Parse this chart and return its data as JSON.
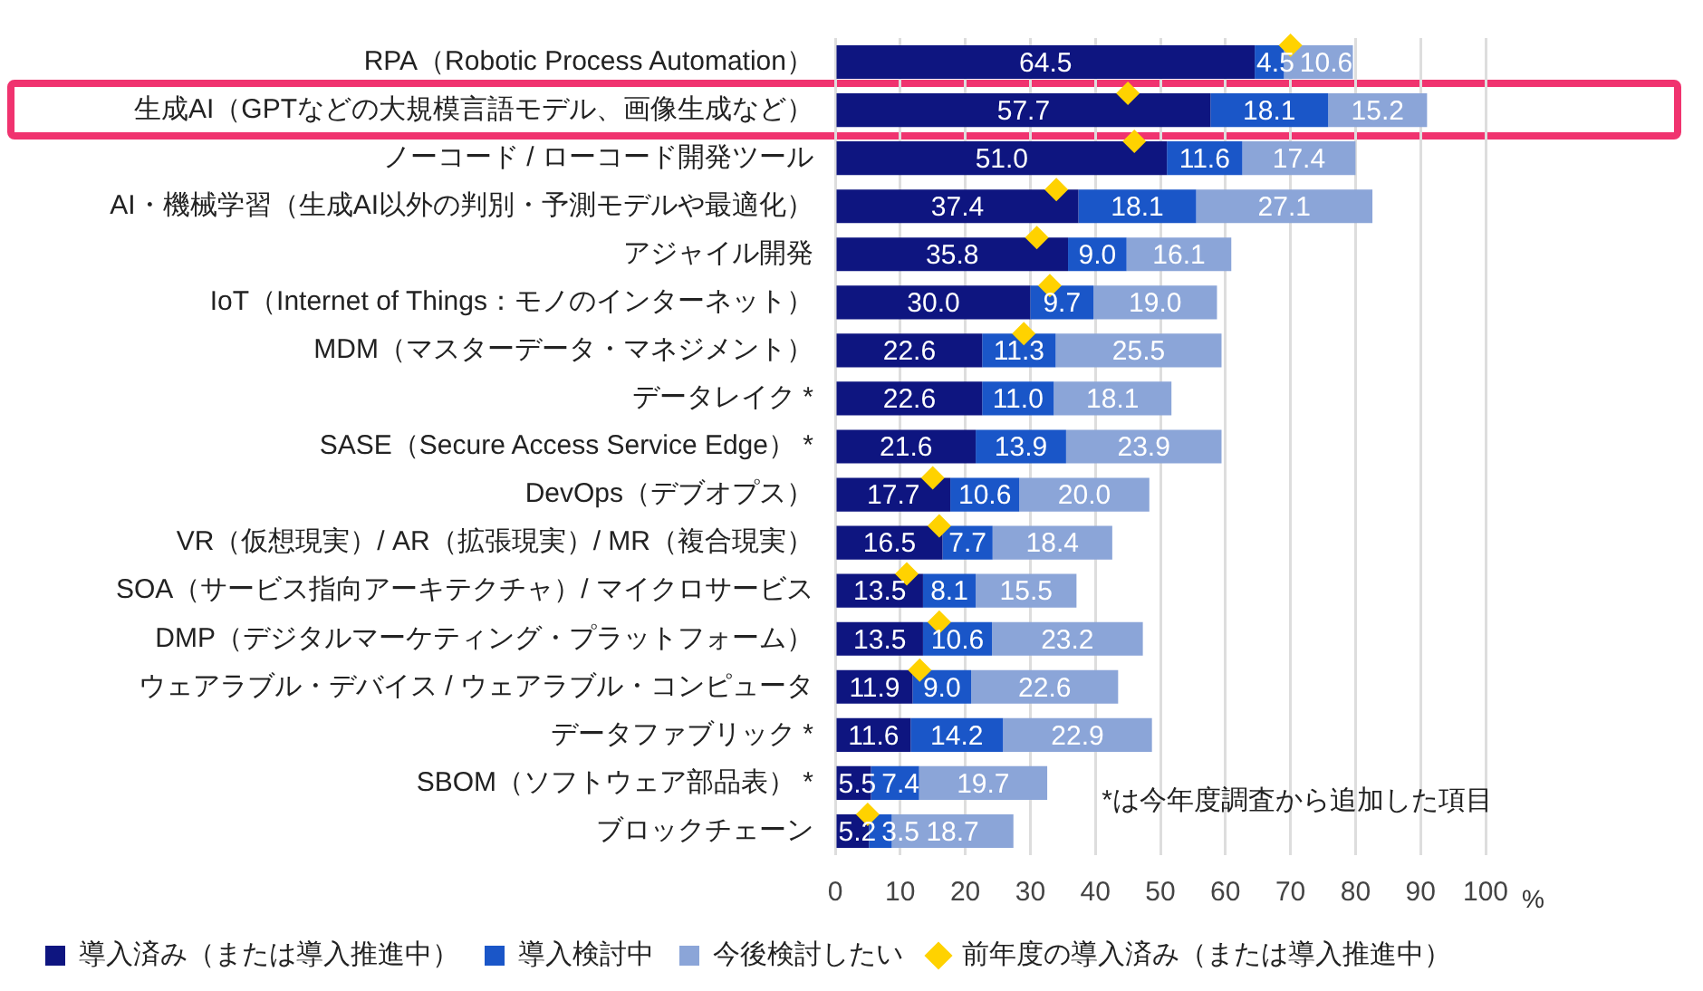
{
  "chart_data": {
    "type": "bar",
    "orientation": "horizontal",
    "stacked": true,
    "categories": [
      "RPA（Robotic Process Automation）",
      "生成AI（GPTなどの大規模言語モデル、画像生成など）",
      "ノーコード / ローコード開発ツール",
      "AI・機械学習（生成AI以外の判別・予測モデルや最適化）",
      "アジャイル開発",
      "IoT（Internet of Things：モノのインターネット）",
      "MDM（マスターデータ・マネジメント）",
      "データレイク *",
      "SASE（Secure Access Service Edge） *",
      "DevOps（デブオプス）",
      "VR（仮想現実）/ AR（拡張現実）/ MR（複合現実）",
      "SOA（サービス指向アーキテクチャ）/ マイクロサービス",
      "DMP（デジタルマーケティング・プラットフォーム）",
      "ウェアラブル・デバイス / ウェアラブル・コンピュータ",
      "データファブリック *",
      "SBOM（ソフトウェア部品表） *",
      "ブロックチェーン"
    ],
    "series": [
      {
        "name": "導入済み（または導入推進中）",
        "color": "#0e1580",
        "values": [
          64.5,
          57.7,
          51.0,
          37.4,
          35.8,
          30.0,
          22.6,
          22.6,
          21.6,
          17.7,
          16.5,
          13.5,
          13.5,
          11.9,
          11.6,
          5.5,
          5.2
        ],
        "value_labels": [
          "64.5",
          "57.7",
          "51.0",
          "37.4",
          "35.8",
          "30.0",
          "22.6",
          "22.6",
          "21.6",
          "17.7",
          "16.5",
          "13.5",
          "13.5",
          "11.9",
          "11.6",
          "5.5",
          "5.2"
        ]
      },
      {
        "name": "導入検討中",
        "color": "#1a56c8",
        "values": [
          4.5,
          18.1,
          11.6,
          18.1,
          9.0,
          9.7,
          11.3,
          11.0,
          13.9,
          10.6,
          7.7,
          8.1,
          10.6,
          9.0,
          14.2,
          7.4,
          3.5
        ],
        "value_labels": [
          "4.5",
          "18.1",
          "11.6",
          "18.1",
          "9.0",
          "9.7",
          "11.3",
          "11.0",
          "13.9",
          "10.6",
          "7.7",
          "8.1",
          "10.6",
          "9.0",
          "14.2",
          "7.4",
          "3.5"
        ]
      },
      {
        "name": "今後検討したい",
        "color": "#8ba5d8",
        "values": [
          10.6,
          15.2,
          17.4,
          27.1,
          16.1,
          19.0,
          25.5,
          18.1,
          23.9,
          20.0,
          18.4,
          15.5,
          23.2,
          22.6,
          22.9,
          19.7,
          18.7
        ],
        "value_labels": [
          "10.6",
          "15.2",
          "17.4",
          "27.1",
          "16.1",
          "19.0",
          "25.5",
          "18.1",
          "23.9",
          "20.0",
          "18.4",
          "15.5",
          "23.2",
          "22.6",
          "22.9",
          "19.7",
          "18.7"
        ]
      },
      {
        "name": "前年度の導入済み（または導入推進中）",
        "type": "scatter",
        "marker": "diamond",
        "color": "#ffd200",
        "values": [
          70,
          45,
          46,
          34,
          31,
          33,
          29,
          null,
          null,
          15,
          16,
          11,
          16,
          13,
          null,
          null,
          5
        ]
      }
    ],
    "xlim": [
      0,
      100
    ],
    "xticks": [
      0,
      10,
      20,
      30,
      40,
      50,
      60,
      70,
      80,
      90,
      100
    ],
    "xlabel": "%",
    "grid": "x",
    "legend": "bottom",
    "annotations": [
      "*は今年度調査から追加した項目"
    ]
  }
}
